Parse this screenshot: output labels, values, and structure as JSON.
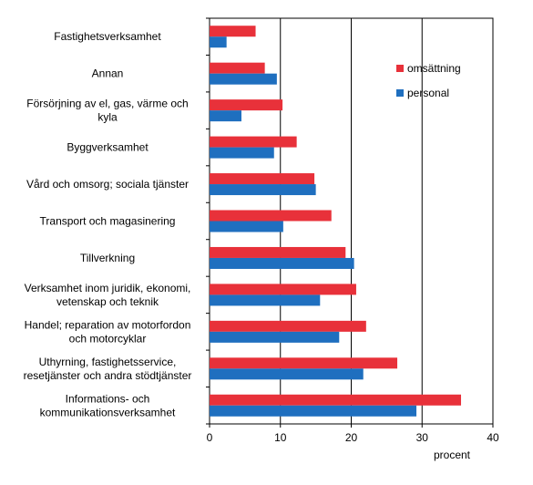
{
  "chart_data": {
    "type": "bar",
    "orientation": "horizontal",
    "title": "",
    "xlabel": "procent",
    "ylabel": "",
    "xlim": [
      0,
      40
    ],
    "xticks": [
      0,
      10,
      20,
      30,
      40
    ],
    "grid": "vertical major lines",
    "legend_position": "top-right",
    "categories": [
      "Fastighetsverksamhet",
      "Annan",
      "Försörjning av el, gas, värme och kyla",
      "Byggverksamhet",
      "Vård och omsorg; sociala tjänster",
      "Transport och magasinering",
      "Tillverkning",
      "Verksamhet inom juridik, ekonomi, vetenskap och teknik",
      "Handel; reparation av motorfordon och motorcyklar",
      "Uthyrning, fastighetsservice, resetjänster och andra stödtjänster",
      "Informations- och kommunikationsverksamhet"
    ],
    "category_label_lines": [
      [
        "Fastighetsverksamhet"
      ],
      [
        "Annan"
      ],
      [
        "Försörjning av el, gas, värme och",
        "kyla"
      ],
      [
        "Byggverksamhet"
      ],
      [
        "Vård och omsorg; sociala tjänster"
      ],
      [
        "Transport och magasinering"
      ],
      [
        "Tillverkning"
      ],
      [
        "Verksamhet inom juridik, ekonomi,",
        "vetenskap och teknik"
      ],
      [
        "Handel; reparation av motorfordon",
        "och motorcyklar"
      ],
      [
        "Uthyrning, fastighetsservice,",
        "resetjänster och andra stödtjänster"
      ],
      [
        "Informations- och",
        "kommunikationsverksamhet"
      ]
    ],
    "series": [
      {
        "name": "omsättning",
        "color": "#e8313a",
        "values": [
          6.5,
          7.8,
          10.3,
          12.3,
          14.8,
          17.2,
          19.2,
          20.7,
          22.1,
          26.5,
          35.5
        ]
      },
      {
        "name": "personal",
        "color": "#1f6fbf",
        "values": [
          2.4,
          9.5,
          4.5,
          9.1,
          15.0,
          10.4,
          20.4,
          15.6,
          18.3,
          21.7,
          29.2
        ]
      }
    ]
  }
}
